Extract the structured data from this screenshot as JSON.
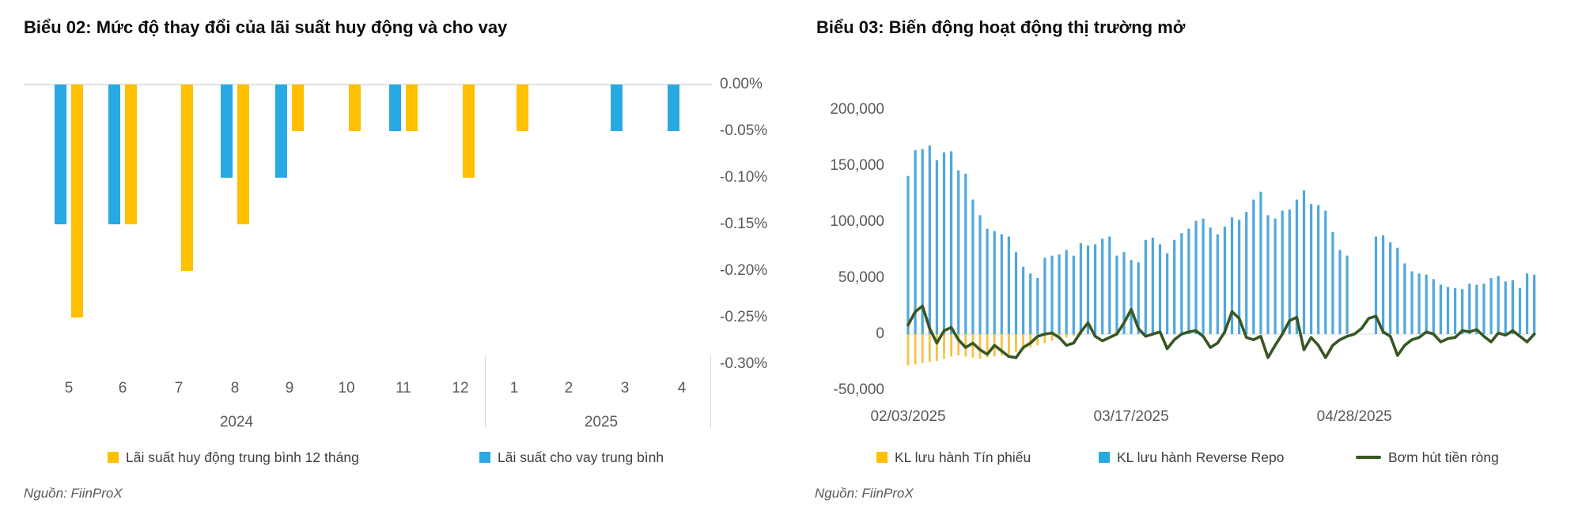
{
  "chart_data": [
    {
      "type": "bar",
      "title": "Biểu 02: Mức độ thay đổi của lãi suất huy động và cho vay",
      "categories": [
        "5",
        "6",
        "7",
        "8",
        "9",
        "10",
        "11",
        "12",
        "1",
        "2",
        "3",
        "4"
      ],
      "year_groups": [
        "2024",
        "2025"
      ],
      "y_tick_labels": [
        "0.00%",
        "-0.05%",
        "-0.10%",
        "-0.15%",
        "-0.20%",
        "-0.25%",
        "-0.30%"
      ],
      "ylim": [
        -0.3,
        0
      ],
      "grid": "zero-line-only",
      "legend_position": "bottom",
      "series": [
        {
          "name": "Lãi suất huy động trung bình 12 tháng",
          "color": "#FFC000",
          "values": [
            -0.25,
            -0.15,
            -0.2,
            -0.15,
            -0.05,
            -0.05,
            -0.05,
            -0.1,
            -0.05,
            0,
            0,
            0
          ]
        },
        {
          "name": "Lãi suất cho vay trung bình",
          "color": "#29A9E1",
          "values": [
            -0.15,
            -0.15,
            0,
            -0.1,
            -0.1,
            0,
            -0.05,
            0,
            0,
            0,
            -0.05,
            -0.05
          ]
        }
      ],
      "source": "Nguồn: FiinProX"
    },
    {
      "type": "bar+line combo (daily)",
      "title": "Biểu 03: Biến động hoạt động thị trường mở",
      "x_tick_labels": [
        "02/03/2025",
        "03/17/2025",
        "04/28/2025"
      ],
      "x_tick_indices": [
        0,
        31,
        62
      ],
      "y_tick_labels": [
        "200,000",
        "150,000",
        "100,000",
        "50,000",
        "0",
        "-50,000"
      ],
      "y_tick_values": [
        200000,
        150000,
        100000,
        50000,
        0,
        -50000
      ],
      "ylim": [
        -50000,
        200000
      ],
      "grid": "zero-line-only",
      "legend_position": "bottom",
      "series": [
        {
          "name": "KL lưu hành Tín phiếu",
          "kind": "bar",
          "color": "#FFC000",
          "bar_color": "#F6C243",
          "values": [
            -28000,
            -27000,
            -26000,
            -25000,
            -24000,
            -22000,
            -20000,
            -19000,
            -20000,
            -21000,
            -22000,
            -21000,
            -20000,
            -19000,
            -18000,
            -16000,
            -14000,
            -12000,
            -10000,
            -8000,
            -6000,
            -4000,
            -3000,
            -2000,
            -1000,
            0,
            0,
            0,
            0,
            0,
            0,
            0,
            0,
            0,
            0,
            0,
            0,
            0,
            0,
            0,
            0,
            0,
            0,
            0,
            0,
            0,
            0,
            0,
            0,
            0,
            0,
            0,
            0,
            0,
            0,
            0,
            0,
            0,
            0,
            0,
            0,
            0,
            0,
            0,
            0,
            0,
            0,
            0,
            0,
            0,
            0,
            0,
            0,
            0,
            0,
            0,
            0,
            0,
            0,
            0,
            0,
            0,
            0,
            0,
            0,
            0,
            0,
            0
          ]
        },
        {
          "name": "KL lưu hành Reverse Repo",
          "kind": "bar",
          "color": "#29A9E1",
          "bar_color": "#4FA8DC",
          "values": [
            141000,
            164000,
            165000,
            168000,
            155000,
            162000,
            163000,
            146000,
            143000,
            120000,
            106000,
            94000,
            92000,
            89000,
            87000,
            73000,
            60000,
            54000,
            50000,
            68000,
            70000,
            71000,
            75000,
            70000,
            81000,
            79000,
            80000,
            85000,
            87000,
            70000,
            73000,
            66000,
            64000,
            84000,
            86000,
            80000,
            72000,
            84000,
            90000,
            94000,
            101000,
            103000,
            95000,
            89000,
            96000,
            104000,
            102000,
            109000,
            120000,
            127000,
            106000,
            103000,
            110000,
            111000,
            120000,
            128000,
            116000,
            115000,
            110000,
            91000,
            75000,
            70000,
            0,
            0,
            0,
            87000,
            88000,
            82000,
            77000,
            63000,
            56000,
            54000,
            53000,
            49000,
            44000,
            42000,
            41000,
            40000,
            45000,
            44000,
            45000,
            50000,
            52000,
            47000,
            48000,
            41000,
            54000,
            53000
          ]
        },
        {
          "name": "Bơm hút tiền ròng",
          "kind": "line",
          "color": "#385723",
          "values": [
            8000,
            20000,
            25000,
            5000,
            -8000,
            3000,
            6000,
            -5000,
            -12000,
            -8000,
            -14000,
            -18000,
            -10000,
            -15000,
            -20000,
            -21000,
            -12000,
            -8000,
            -2000,
            0,
            1000,
            -3000,
            -10000,
            -8000,
            2000,
            10000,
            -2000,
            -6000,
            -3000,
            0,
            10000,
            22000,
            5000,
            -2000,
            0,
            2000,
            -13000,
            -5000,
            0,
            2000,
            3000,
            -2000,
            -12000,
            -8000,
            2000,
            20000,
            14000,
            -3000,
            -5000,
            -2000,
            -21000,
            -10000,
            0,
            12000,
            15000,
            -14000,
            -3000,
            -10000,
            -21000,
            -10000,
            -5000,
            -2000,
            0,
            5000,
            14000,
            16000,
            2000,
            -2000,
            -19000,
            -10000,
            -5000,
            -3000,
            2000,
            0,
            -7000,
            -4000,
            -3000,
            3000,
            2000,
            4000,
            -2000,
            -7000,
            1000,
            -1000,
            3000,
            -2000,
            -7000,
            0
          ]
        }
      ],
      "source": "Nguồn: FiinProX"
    }
  ]
}
